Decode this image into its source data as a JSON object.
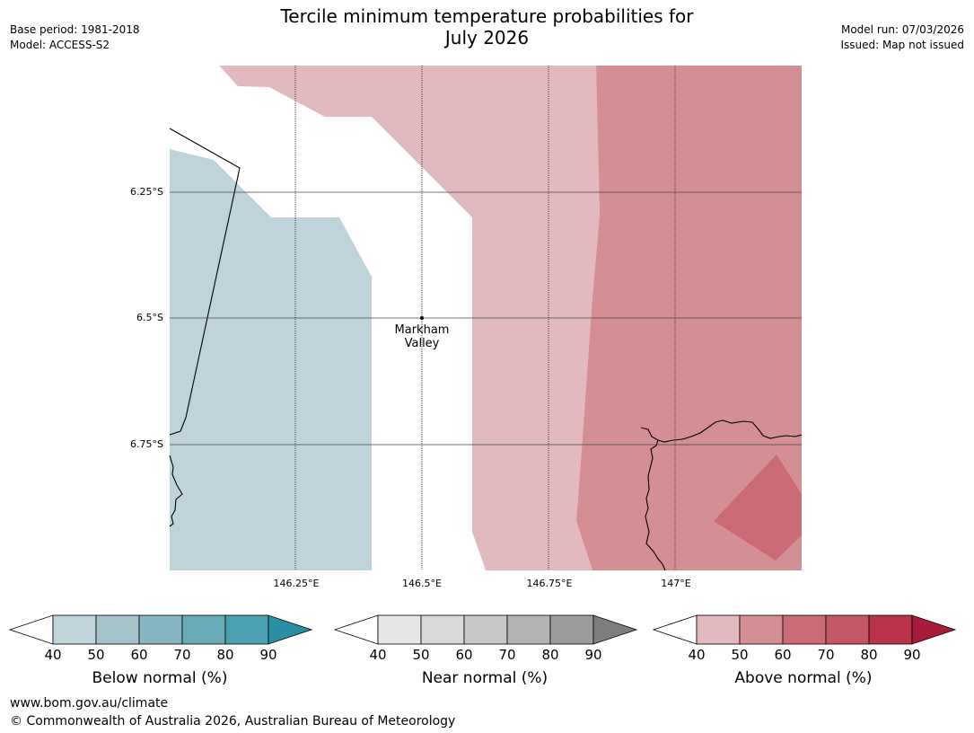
{
  "header": {
    "title_line1": "Tercile minimum temperature probabilities for",
    "title_line2": "July 2026",
    "base_period": "Base period: 1981-2018",
    "model": "Model: ACCESS-S2",
    "model_run": "Model run: 07/03/2026",
    "issued": "Issued: Map not issued"
  },
  "map": {
    "lat_labels": [
      "6.25°S",
      "6.5°S",
      "6.75°S"
    ],
    "lon_labels": [
      "146.25°E",
      "146.5°E",
      "146.75°E",
      "147°E"
    ],
    "place": {
      "name_line1": "Markham",
      "name_line2": "Valley"
    },
    "region_colors": {
      "below_40_50": "#bfd4da",
      "above_40_50": "#e1b9be",
      "above_50_60": "#d48f95",
      "above_60_70": "#cb6b75"
    }
  },
  "legends": [
    {
      "title": "Below normal (%)",
      "ticks": [
        "40",
        "50",
        "60",
        "70",
        "80",
        "90"
      ],
      "colors": [
        "#bfd4da",
        "#a4c3ca",
        "#87b5c1",
        "#6aabb9",
        "#4aa0b0",
        "#2b8fa3"
      ]
    },
    {
      "title": "Near normal (%)",
      "ticks": [
        "40",
        "50",
        "60",
        "70",
        "80",
        "90"
      ],
      "colors": [
        "#e6e6e6",
        "#d9d9d9",
        "#c8c8c8",
        "#b3b3b3",
        "#9c9c9c",
        "#7d7d7d"
      ]
    },
    {
      "title": "Above normal (%)",
      "ticks": [
        "40",
        "50",
        "60",
        "70",
        "80",
        "90"
      ],
      "colors": [
        "#e1b9be",
        "#d48f95",
        "#cb6b75",
        "#c35766",
        "#ba3248",
        "#a81c3a"
      ]
    }
  ],
  "footer": {
    "url": "www.bom.gov.au/climate",
    "copyright": "© Commonwealth of Australia 2026, Australian Bureau of Meteorology"
  }
}
